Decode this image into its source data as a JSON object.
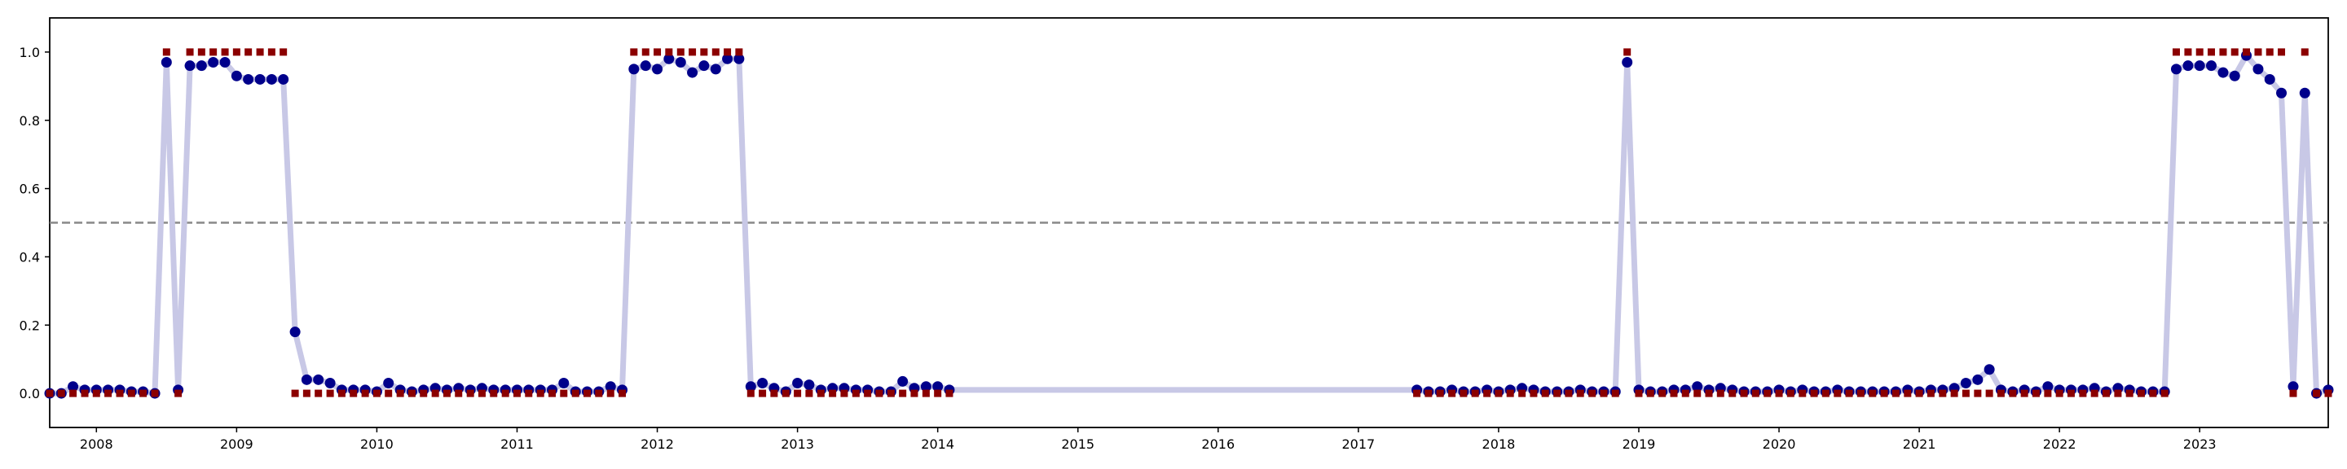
{
  "chart_data": {
    "type": "line",
    "x": [
      2007.667,
      2007.75,
      2007.833,
      2007.917,
      2008,
      2008.083,
      2008.167,
      2008.25,
      2008.333,
      2008.417,
      2008.5,
      2008.583,
      2008.667,
      2008.75,
      2008.833,
      2008.917,
      2009,
      2009.083,
      2009.167,
      2009.25,
      2009.333,
      2009.417,
      2009.5,
      2009.583,
      2009.667,
      2009.75,
      2009.833,
      2009.917,
      2010,
      2010.083,
      2010.167,
      2010.25,
      2010.333,
      2010.417,
      2010.5,
      2010.583,
      2010.667,
      2010.75,
      2010.833,
      2010.917,
      2011,
      2011.083,
      2011.167,
      2011.25,
      2011.333,
      2011.417,
      2011.5,
      2011.583,
      2011.667,
      2011.75,
      2011.833,
      2011.917,
      2012,
      2012.083,
      2012.167,
      2012.25,
      2012.333,
      2012.417,
      2012.5,
      2012.583,
      2012.667,
      2012.75,
      2012.833,
      2012.917,
      2013,
      2013.083,
      2013.167,
      2013.25,
      2013.333,
      2013.417,
      2013.5,
      2013.583,
      2013.667,
      2013.75,
      2013.833,
      2013.917,
      2014,
      2014.083,
      2017.417,
      2017.5,
      2017.583,
      2017.667,
      2017.75,
      2017.833,
      2017.917,
      2018,
      2018.083,
      2018.167,
      2018.25,
      2018.333,
      2018.417,
      2018.5,
      2018.583,
      2018.667,
      2018.75,
      2018.833,
      2018.917,
      2019,
      2019.083,
      2019.167,
      2019.25,
      2019.333,
      2019.417,
      2019.5,
      2019.583,
      2019.667,
      2019.75,
      2019.833,
      2019.917,
      2020,
      2020.083,
      2020.167,
      2020.25,
      2020.333,
      2020.417,
      2020.5,
      2020.583,
      2020.667,
      2020.75,
      2020.833,
      2020.917,
      2021,
      2021.083,
      2021.167,
      2021.25,
      2021.333,
      2021.417,
      2021.5,
      2021.583,
      2021.667,
      2021.75,
      2021.833,
      2021.917,
      2022,
      2022.083,
      2022.167,
      2022.25,
      2022.333,
      2022.417,
      2022.5,
      2022.583,
      2022.667,
      2022.75,
      2022.833,
      2022.917,
      2023,
      2023.083,
      2023.167,
      2023.25,
      2023.333,
      2023.417,
      2023.5,
      2023.583,
      2023.667,
      2023.75,
      2023.833,
      2023.917
    ],
    "series": [
      {
        "color": "#00008b",
        "line_color": "#c8c8e6",
        "marker": "circle",
        "values": [
          0,
          0,
          0.02,
          0.01,
          0.01,
          0.01,
          0.01,
          0.005,
          0.005,
          0,
          0.97,
          0.01,
          0.96,
          0.96,
          0.97,
          0.97,
          0.93,
          0.92,
          0.92,
          0.92,
          0.92,
          0.18,
          0.04,
          0.04,
          0.03,
          0.01,
          0.01,
          0.01,
          0.005,
          0.03,
          0.01,
          0.005,
          0.01,
          0.015,
          0.01,
          0.015,
          0.01,
          0.015,
          0.01,
          0.01,
          0.01,
          0.01,
          0.01,
          0.01,
          0.03,
          0.005,
          0.005,
          0.005,
          0.02,
          0.01,
          0.95,
          0.96,
          0.95,
          0.98,
          0.97,
          0.94,
          0.96,
          0.95,
          0.98,
          0.98,
          0.02,
          0.03,
          0.015,
          0.005,
          0.03,
          0.025,
          0.01,
          0.015,
          0.015,
          0.01,
          0.01,
          0.005,
          0.005,
          0.035,
          0.015,
          0.02,
          0.02,
          0.01,
          0.01,
          0.005,
          0.005,
          0.01,
          0.005,
          0.005,
          0.01,
          0.005,
          0.01,
          0.015,
          0.01,
          0.005,
          0.005,
          0.005,
          0.01,
          0.005,
          0.005,
          0.005,
          0.97,
          0.01,
          0.005,
          0.005,
          0.01,
          0.01,
          0.02,
          0.01,
          0.015,
          0.01,
          0.005,
          0.005,
          0.005,
          0.01,
          0.005,
          0.01,
          0.005,
          0.005,
          0.01,
          0.005,
          0.005,
          0.005,
          0.005,
          0.005,
          0.01,
          0.005,
          0.01,
          0.01,
          0.015,
          0.03,
          0.04,
          0.07,
          0.01,
          0.005,
          0.01,
          0.005,
          0.02,
          0.01,
          0.01,
          0.01,
          0.015,
          0.005,
          0.015,
          0.01,
          0.005,
          0.005,
          0.005,
          0.95,
          0.96,
          0.96,
          0.96,
          0.94,
          0.93,
          0.99,
          0.95,
          0.92,
          0.88,
          0.02,
          0.88,
          0,
          0.01
        ]
      },
      {
        "color": "#8b0000",
        "marker": "square",
        "values": [
          0,
          0,
          0,
          0,
          0,
          0,
          0,
          0,
          0,
          0,
          1,
          0,
          1,
          1,
          1,
          1,
          1,
          1,
          1,
          1,
          1,
          0,
          0,
          0,
          0,
          0,
          0,
          0,
          0,
          0,
          0,
          0,
          0,
          0,
          0,
          0,
          0,
          0,
          0,
          0,
          0,
          0,
          0,
          0,
          0,
          0,
          0,
          0,
          0,
          0,
          1,
          1,
          1,
          1,
          1,
          1,
          1,
          1,
          1,
          1,
          0,
          0,
          0,
          0,
          0,
          0,
          0,
          0,
          0,
          0,
          0,
          0,
          0,
          0,
          0,
          0,
          0,
          0,
          0,
          0,
          0,
          0,
          0,
          0,
          0,
          0,
          0,
          0,
          0,
          0,
          0,
          0,
          0,
          0,
          0,
          0,
          1,
          0,
          0,
          0,
          0,
          0,
          0,
          0,
          0,
          0,
          0,
          0,
          0,
          0,
          0,
          0,
          0,
          0,
          0,
          0,
          0,
          0,
          0,
          0,
          0,
          0,
          0,
          0,
          0,
          0,
          0,
          0,
          0,
          0,
          0,
          0,
          0,
          0,
          0,
          0,
          0,
          0,
          0,
          0,
          0,
          0,
          0,
          1,
          1,
          1,
          1,
          1,
          1,
          1,
          1,
          1,
          1,
          0,
          1,
          0,
          0
        ]
      }
    ],
    "threshold": 0.5,
    "threshold_color": "#888888",
    "xlim": [
      2007.667,
      2023.917
    ],
    "xticks": [
      2008,
      2009,
      2010,
      2011,
      2012,
      2013,
      2014,
      2015,
      2016,
      2017,
      2018,
      2019,
      2020,
      2021,
      2022,
      2023
    ],
    "ylim": [
      -0.1,
      1.1
    ],
    "yticks": [
      {
        "value": 0,
        "label": "0.0"
      },
      0.2,
      0.4,
      0.6,
      0.8,
      {
        "value": 1,
        "label": "1.0"
      }
    ],
    "grid": false
  }
}
